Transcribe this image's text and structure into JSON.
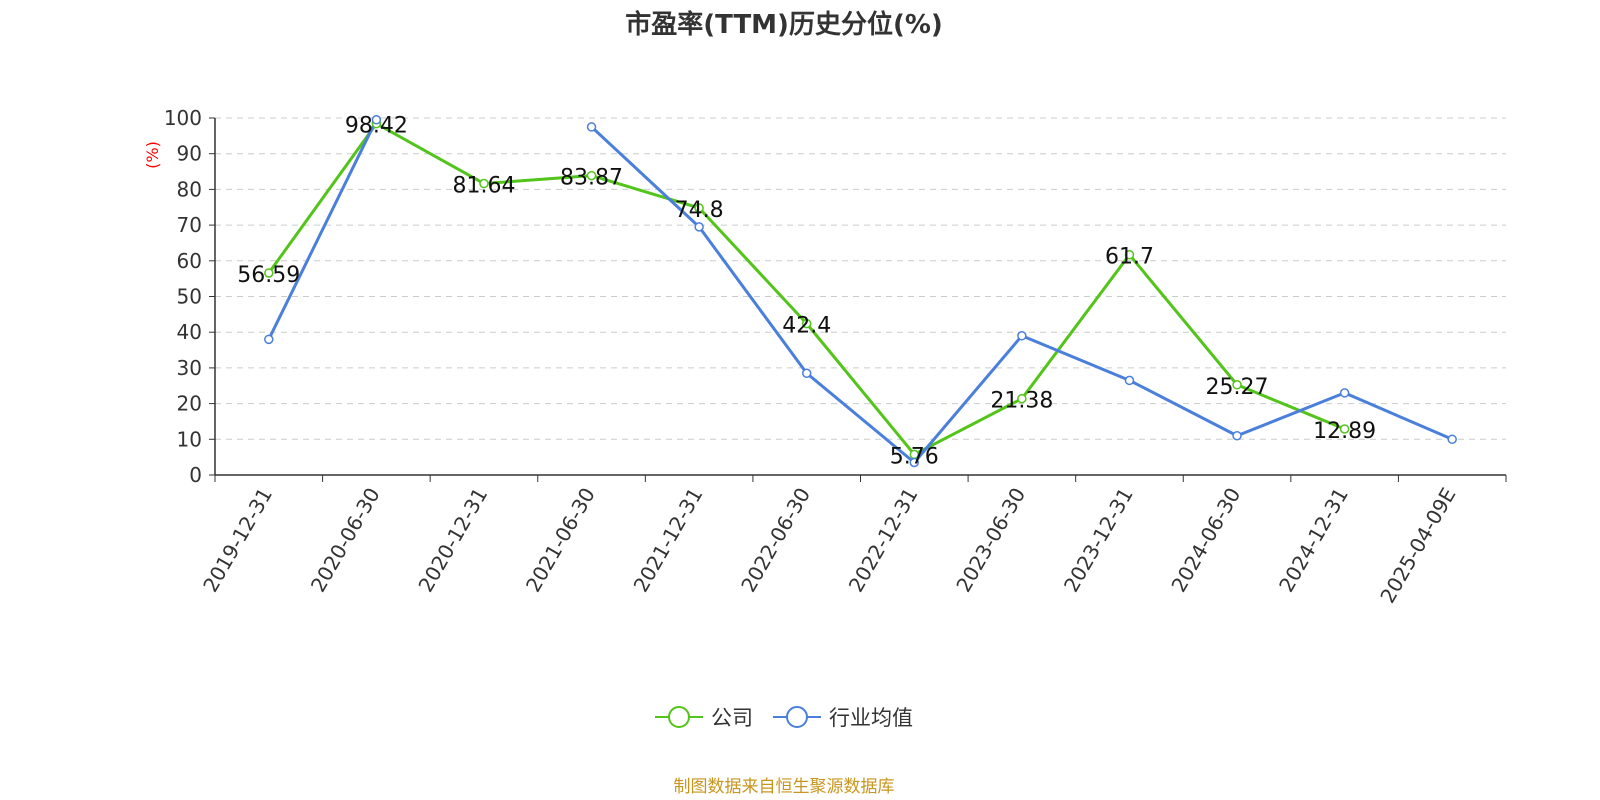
{
  "chart_data": {
    "type": "line",
    "title": "市盈率(TTM)历史分位(%)",
    "ylabel": "(%)",
    "ylim": [
      0,
      100
    ],
    "yticks": [
      0,
      10,
      20,
      30,
      40,
      50,
      60,
      70,
      80,
      90,
      100
    ],
    "categories": [
      "2019-12-31",
      "2020-06-30",
      "2020-12-31",
      "2021-06-30",
      "2021-12-31",
      "2022-06-30",
      "2022-12-31",
      "2023-06-30",
      "2023-12-31",
      "2024-06-30",
      "2024-12-31",
      "2025-04-09E"
    ],
    "grid": true,
    "legend_position": "bottom",
    "series": [
      {
        "name": "公司",
        "color": "#52c41a",
        "values": [
          56.59,
          98.42,
          81.64,
          83.87,
          74.8,
          42.4,
          5.76,
          21.38,
          61.7,
          25.27,
          12.89,
          null
        ],
        "labels": [
          "56.59",
          "98.42",
          "81.64",
          "83.87",
          "74.8",
          "42.4",
          "5.76",
          "21.38",
          "61.7",
          "25.27",
          "12.89",
          null
        ]
      },
      {
        "name": "行业均值",
        "color": "#4a7fdc",
        "segments": [
          [
            [
              0,
              38
            ],
            [
              1,
              99.5
            ]
          ],
          [
            [
              3,
              97.5
            ],
            [
              4,
              69.5
            ],
            [
              5,
              28.5
            ],
            [
              6,
              3.5
            ],
            [
              7,
              39
            ],
            [
              8,
              26.5
            ],
            [
              9,
              11
            ],
            [
              10,
              23
            ],
            [
              11,
              10
            ]
          ]
        ]
      }
    ]
  },
  "footer": {
    "source": "制图数据来自恒生聚源数据库"
  },
  "colors": {
    "title": "#333333",
    "axis": "#333333",
    "grid": "#cccccc",
    "ylabel": "#ff0000",
    "source": "#c8961e"
  }
}
